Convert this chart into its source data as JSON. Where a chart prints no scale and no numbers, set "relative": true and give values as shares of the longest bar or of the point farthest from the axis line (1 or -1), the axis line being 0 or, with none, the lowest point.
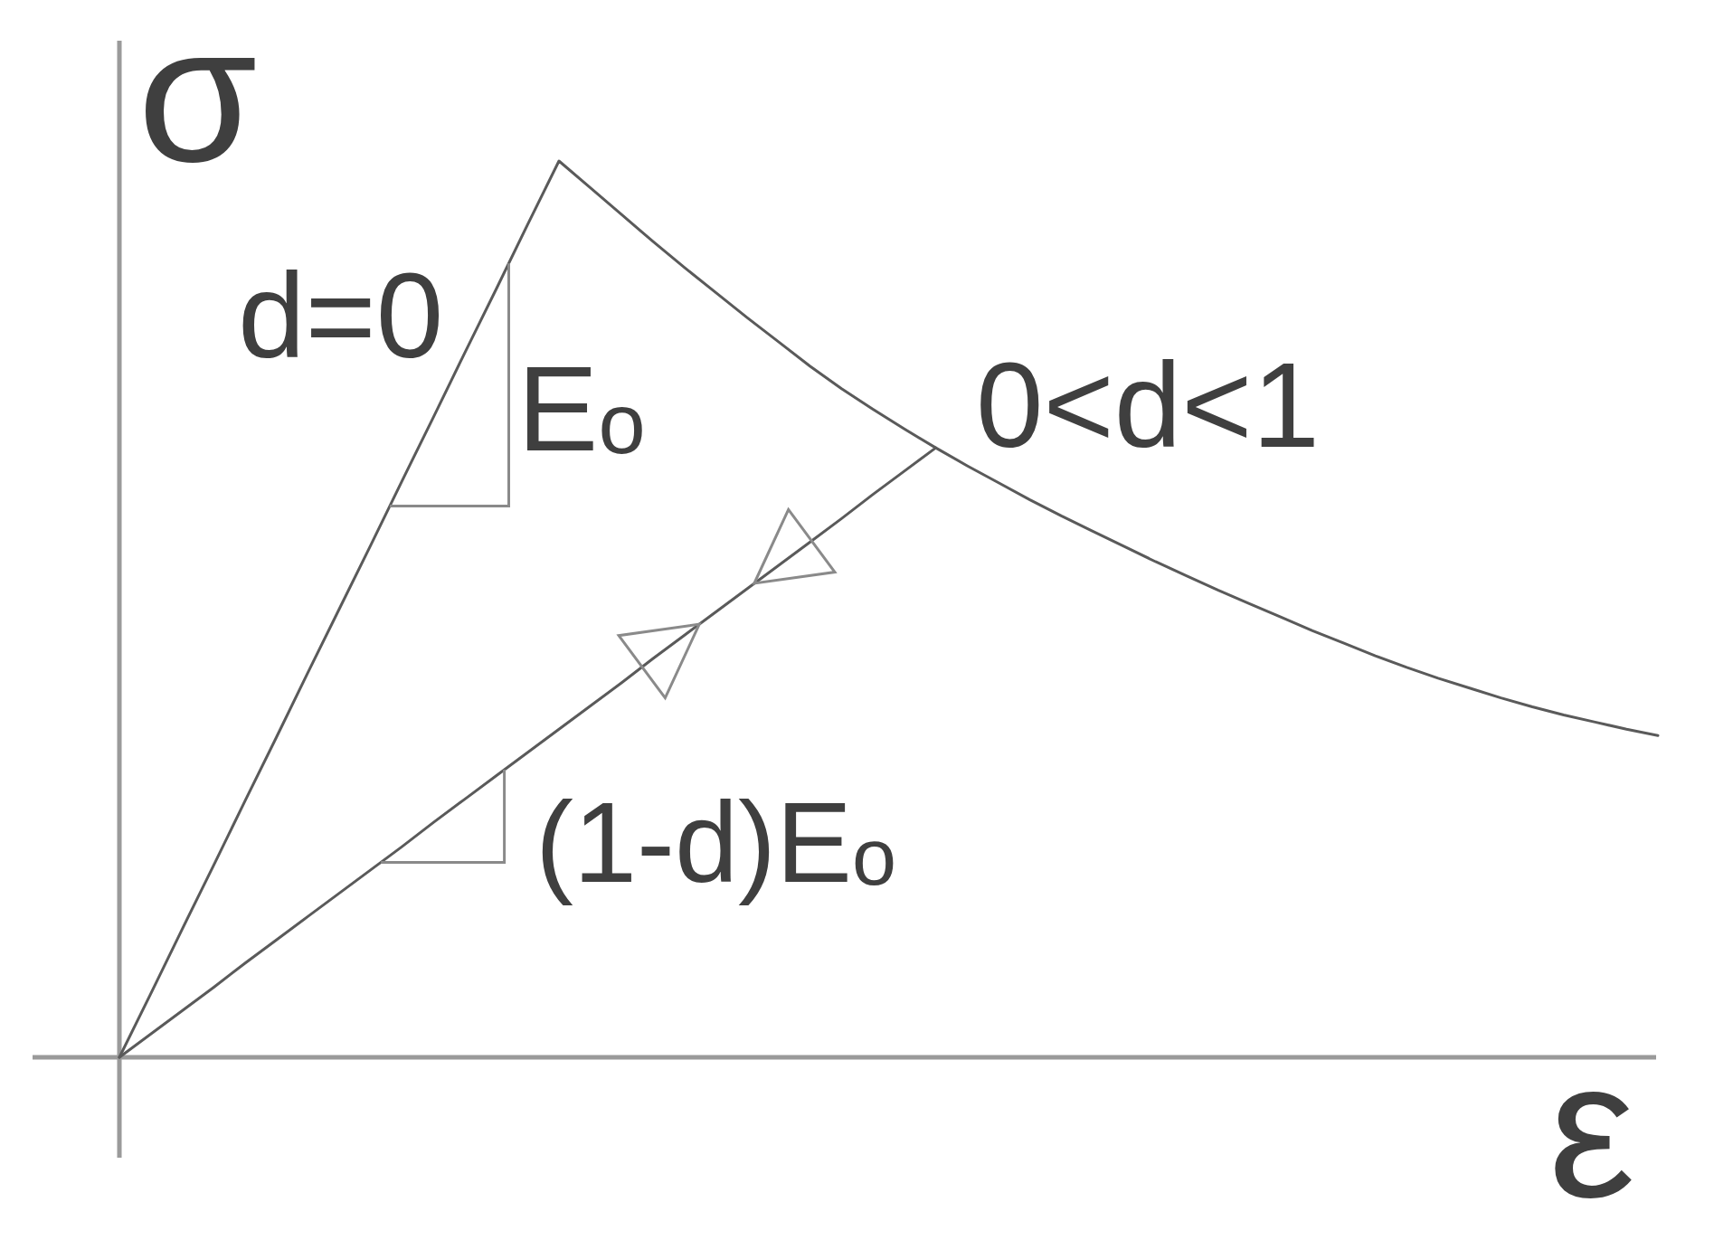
{
  "chart_data": {
    "type": "line",
    "relative": true,
    "xlabel": "ε",
    "ylabel": "σ",
    "categories": [
      null,
      null,
      null,
      null,
      null,
      null,
      null,
      null,
      null,
      null,
      null,
      null,
      null,
      null,
      null,
      null,
      null,
      null,
      null,
      null,
      null,
      null,
      null,
      null,
      null,
      null,
      null,
      null,
      null,
      null,
      null,
      null,
      null,
      null,
      null,
      null,
      null,
      null,
      null,
      null,
      null,
      null,
      null,
      null,
      null,
      null,
      null,
      null,
      null,
      null
    ],
    "series": [
      {
        "color": "#5a5a5a",
        "values": [
          0,
          0.071,
          0.143,
          0.214,
          0.286,
          0.357,
          0.429,
          0.5,
          0.571,
          0.643,
          0.714,
          0.786,
          0.857,
          0.929,
          1,
          0.97,
          0.94,
          0.91,
          0.881,
          0.853,
          0.825,
          0.798,
          0.771,
          0.746,
          0.723,
          0.701,
          0.68,
          0.66,
          0.641,
          0.622,
          0.604,
          0.587,
          0.57,
          0.553,
          0.537,
          0.521,
          0.506,
          0.491,
          0.476,
          0.462,
          0.448,
          0.435,
          0.423,
          0.412,
          0.401,
          0.391,
          0.382,
          0.374,
          0.366,
          0.359
        ]
      },
      {
        "color": "#5a5a5a",
        "values": [
          0,
          0.026,
          0.052,
          0.078,
          0.105,
          0.131,
          0.157,
          0.183,
          0.209,
          0.235,
          0.262,
          0.288,
          0.314,
          0.34,
          0.366,
          0.392,
          0.418,
          0.445,
          0.471,
          0.497,
          0.523,
          0.549,
          0.575,
          0.601,
          0.628,
          0.654,
          0.68,
          null,
          null,
          null,
          null,
          null,
          null,
          null,
          null,
          null,
          null,
          null,
          null,
          null,
          null,
          null,
          null,
          null,
          null,
          null,
          null,
          null,
          null,
          null
        ]
      }
    ],
    "annotations": [
      "d=0",
      "E$_{o}$",
      "0<d<1",
      "(1-d)E$_{o}$"
    ]
  }
}
